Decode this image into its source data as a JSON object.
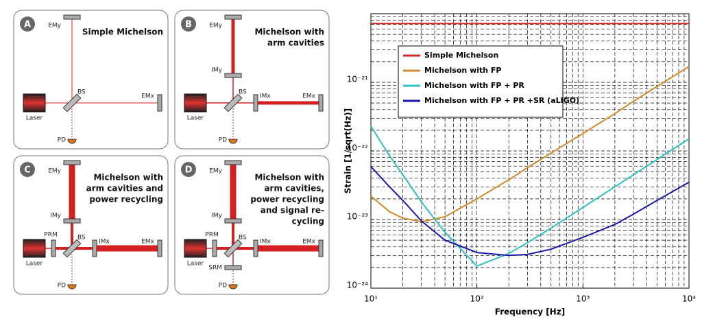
{
  "diagrams": [
    {
      "letter": "A",
      "title": [
        "Simple Michelson"
      ],
      "labels": {
        "emy": "EMy",
        "emx": "EMx",
        "bs": "BS",
        "laser": "Laser",
        "pd": "PD"
      }
    },
    {
      "letter": "B",
      "title": [
        "Michelson with",
        "arm cavities"
      ],
      "labels": {
        "emy": "EMy",
        "imy": "IMy",
        "emx": "EMx",
        "imx": "IMx",
        "bs": "BS",
        "laser": "Laser",
        "pd": "PD"
      }
    },
    {
      "letter": "C",
      "title": [
        "Michelson with",
        "arm cavities and",
        "power recycling"
      ],
      "labels": {
        "emy": "EMy",
        "imy": "IMy",
        "emx": "EMx",
        "imx": "IMx",
        "bs": "BS",
        "prm": "PRM",
        "laser": "Laser",
        "pd": "PD"
      }
    },
    {
      "letter": "D",
      "title": [
        "Michelson with",
        "arm cavities,",
        "power recycling",
        "and signal re-",
        "cycling"
      ],
      "labels": {
        "emy": "EMy",
        "imy": "IMy",
        "emx": "EMx",
        "imx": "IMx",
        "bs": "BS",
        "prm": "PRM",
        "srm": "SRM",
        "laser": "Laser",
        "pd": "PD"
      }
    }
  ],
  "chart_data": {
    "type": "line",
    "x_label": "Frequency [Hz]",
    "y_label": "Strain [1/sqrt(Hz)]",
    "log_x": true,
    "log_y": true,
    "grid": true,
    "minor_grid": true,
    "legend": "upper left",
    "xlim": [
      10,
      10000
    ],
    "ylim": [
      1e-24,
      1e-20
    ],
    "xticks": [
      {
        "value": 10,
        "label": "10¹"
      },
      {
        "value": 100,
        "label": "10²"
      },
      {
        "value": 1000,
        "label": "10³"
      },
      {
        "value": 10000,
        "label": "10⁴"
      }
    ],
    "yticks": [
      {
        "value": 1e-24,
        "label": "10⁻²⁴"
      },
      {
        "value": 1e-23,
        "label": "10⁻²³"
      },
      {
        "value": 1e-22,
        "label": "10⁻²²"
      },
      {
        "value": 1e-21,
        "label": "10⁻²¹"
      }
    ],
    "x": [
      10,
      15,
      20,
      30,
      50,
      100,
      200,
      300,
      500,
      1000,
      2000,
      3000,
      5000,
      10000
    ],
    "series": [
      {
        "name": "Simple Michelson",
        "color": "#d42a2a",
        "values": [
          7.2e-21,
          7.2e-21,
          7.2e-21,
          7.2e-21,
          7.2e-21,
          7.2e-21,
          7.2e-21,
          7.2e-21,
          7.2e-21,
          7.2e-21,
          7.2e-21,
          7.2e-21,
          7.2e-21,
          7.2e-21
        ]
      },
      {
        "name": "Michelson with FP",
        "color": "#d4892a",
        "values": [
          2.2e-23,
          1.3e-23,
          1.05e-23,
          9.3e-24,
          1.1e-23,
          2e-23,
          3.8e-23,
          5.7e-23,
          9.3e-23,
          1.8e-22,
          3.5e-22,
          5.3e-22,
          8.7e-22,
          1.7e-21
        ]
      },
      {
        "name": "Michelson with FP + PR",
        "color": "#2fc0c0",
        "values": [
          2.3e-22,
          8.5e-23,
          4.5e-23,
          1.8e-23,
          6.5e-24,
          2.1e-24,
          3.2e-24,
          4.6e-24,
          7.5e-24,
          1.5e-23,
          3e-23,
          4.5e-23,
          7.5e-23,
          1.5e-22
        ]
      },
      {
        "name": "Michelson with FP + PR +SR (aLIGO)",
        "color": "#1a1aa8",
        "values": [
          5.9e-23,
          3e-23,
          1.9e-23,
          9.5e-24,
          5e-24,
          3.3e-24,
          3e-24,
          3.1e-24,
          3.7e-24,
          5.5e-24,
          8.5e-24,
          1.2e-23,
          1.9e-23,
          3.5e-23
        ]
      }
    ]
  }
}
